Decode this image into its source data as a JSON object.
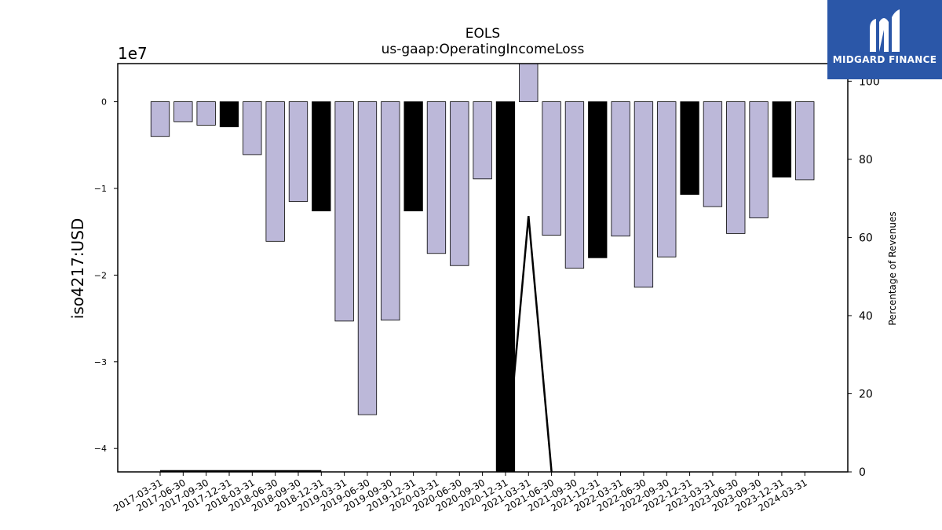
{
  "chart_data": {
    "type": "bar",
    "title": "EOLS",
    "subtitle": "us-gaap:OperatingIncomeLoss",
    "ylabel": "iso4217:USD",
    "y2label": "Percentage of Revenues",
    "y_offset_label": "1e7",
    "ylim": [
      -4.27,
      0.44
    ],
    "y2lim": [
      0,
      104.5
    ],
    "yticks": [
      0,
      -1,
      -2,
      -3,
      -4
    ],
    "yticklabels": [
      "0",
      "−1",
      "−2",
      "−3",
      "−4"
    ],
    "y2ticks": [
      0,
      20,
      40,
      60,
      80,
      100
    ],
    "categories": [
      "2017-03-31",
      "2017-06-30",
      "2017-09-30",
      "2017-12-31",
      "2018-03-31",
      "2018-06-30",
      "2018-09-30",
      "2018-12-31",
      "2019-03-31",
      "2019-06-30",
      "2019-09-30",
      "2019-12-31",
      "2020-03-31",
      "2020-06-30",
      "2020-09-30",
      "2020-12-31",
      "2021-03-31",
      "2021-06-30",
      "2021-09-30",
      "2021-12-31",
      "2022-03-31",
      "2022-06-30",
      "2022-09-30",
      "2022-12-31",
      "2023-03-31",
      "2023-06-30",
      "2023-09-30",
      "2023-12-31",
      "2024-03-31"
    ],
    "values": [
      -0.4,
      -0.23,
      -0.27,
      -0.29,
      -0.61,
      -1.61,
      -1.15,
      -1.26,
      -2.53,
      -3.61,
      -2.52,
      -1.26,
      -1.75,
      -1.89,
      -0.89,
      -4.27,
      0.44,
      -1.54,
      -1.92,
      -1.8,
      -1.55,
      -2.14,
      -1.79,
      -1.07,
      -1.21,
      -1.52,
      -1.34,
      -0.87,
      -0.9
    ],
    "annual": [
      false,
      false,
      false,
      true,
      false,
      false,
      false,
      true,
      false,
      false,
      false,
      true,
      false,
      false,
      false,
      true,
      false,
      false,
      false,
      true,
      false,
      false,
      false,
      true,
      false,
      false,
      false,
      true,
      false
    ],
    "pct_revenue": [
      0.2,
      0.2,
      0.2,
      0.2,
      0.2,
      0.2,
      0.2,
      0.2,
      null,
      null,
      null,
      null,
      null,
      null,
      null,
      0,
      65.5,
      0,
      null,
      null,
      null,
      null,
      null,
      null,
      null,
      null,
      null,
      null,
      null
    ],
    "colors": {
      "quarter": "#bcb8d9",
      "annual": "#000000",
      "edge": "#000000",
      "line": "#000000"
    },
    "grid": false,
    "legend": "none"
  },
  "brand": {
    "name": "MIDGARD FINANCE",
    "bg": "#2b57a8",
    "fg": "#ffffff"
  }
}
